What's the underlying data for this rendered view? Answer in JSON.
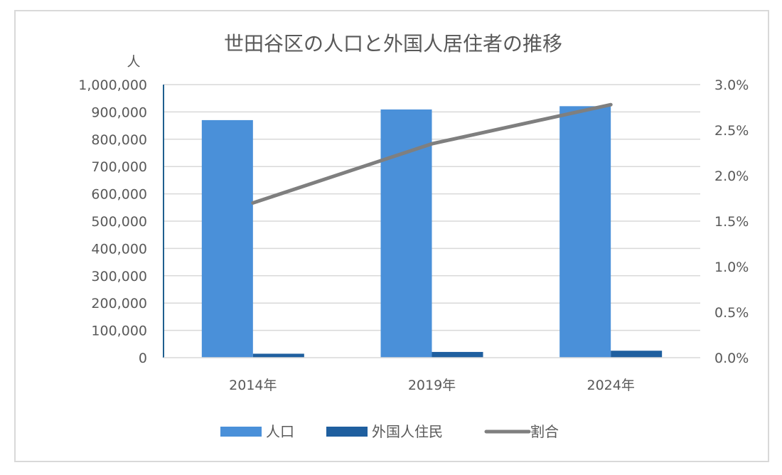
{
  "chart_data": {
    "type": "bar",
    "title": "世田谷区の人口と外国人居住者の推移",
    "y_unit_label": "人",
    "categories": [
      "2014年",
      "2019年",
      "2024年"
    ],
    "series": [
      {
        "name": "人口",
        "type": "bar",
        "axis": "left",
        "color": "#4a90d9",
        "values": [
          870000,
          909000,
          921000
        ]
      },
      {
        "name": "外国人住民",
        "type": "bar",
        "axis": "left",
        "color": "#1f5f9f",
        "values": [
          14500,
          21000,
          25500
        ]
      },
      {
        "name": "割合",
        "type": "line",
        "axis": "right",
        "color": "#7f7f7f",
        "values": [
          0.017,
          0.0235,
          0.0278
        ]
      }
    ],
    "y_left": {
      "min": 0,
      "max": 1000000,
      "step": 100000,
      "ticks": [
        "0",
        "100,000",
        "200,000",
        "300,000",
        "400,000",
        "500,000",
        "600,000",
        "700,000",
        "800,000",
        "900,000",
        "1,000,000"
      ]
    },
    "y_right": {
      "min": 0,
      "max": 0.03,
      "step": 0.005,
      "ticks": [
        "0.0%",
        "0.5%",
        "1.0%",
        "1.5%",
        "2.0%",
        "2.5%",
        "3.0%"
      ]
    },
    "grid": true,
    "legend_position": "bottom"
  }
}
